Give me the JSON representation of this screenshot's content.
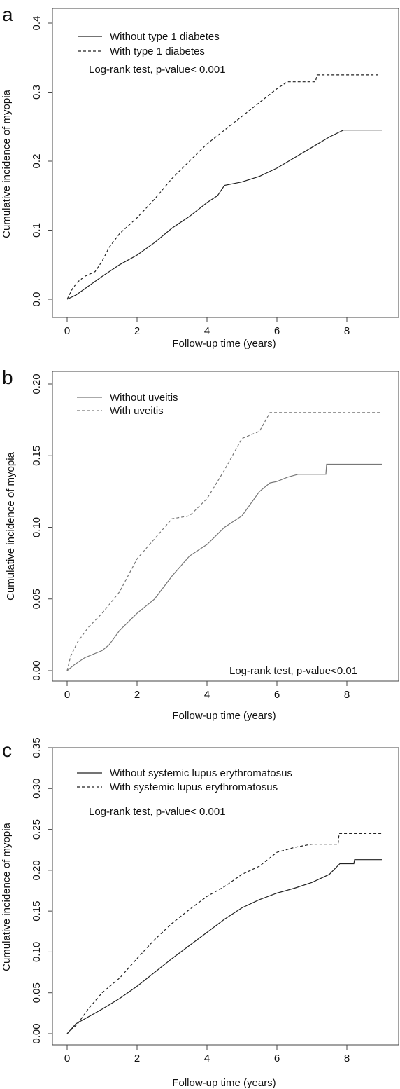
{
  "chart_data": [
    {
      "type": "line",
      "panel_label": "a",
      "title": "",
      "xlabel": "Follow-up time (years)",
      "ylabel": "Cumulative incidence of myopia",
      "xlim": [
        0,
        9
      ],
      "ylim": [
        0,
        0.4
      ],
      "xticks": [
        0,
        2,
        4,
        6,
        8
      ],
      "yticks": [
        0.0,
        0.1,
        0.2,
        0.3,
        0.4
      ],
      "ytick_labels": [
        "0.0",
        "0.1",
        "0.2",
        "0.3",
        "0.4"
      ],
      "grid": false,
      "legend_position": "top-left",
      "annotation": "Log-rank test, p-value< 0.001",
      "series": [
        {
          "name": "Without type 1 diabetes",
          "style": "solid",
          "color": "#222222",
          "points": [
            [
              0,
              0
            ],
            [
              0.25,
              0.006
            ],
            [
              0.5,
              0.015
            ],
            [
              1,
              0.033
            ],
            [
              1.5,
              0.05
            ],
            [
              2,
              0.064
            ],
            [
              2.5,
              0.082
            ],
            [
              3,
              0.103
            ],
            [
              3.5,
              0.12
            ],
            [
              4,
              0.14
            ],
            [
              4.3,
              0.15
            ],
            [
              4.5,
              0.165
            ],
            [
              5,
              0.17
            ],
            [
              5.5,
              0.178
            ],
            [
              6,
              0.19
            ],
            [
              6.5,
              0.205
            ],
            [
              7,
              0.22
            ],
            [
              7.5,
              0.235
            ],
            [
              7.9,
              0.245
            ],
            [
              9,
              0.245
            ]
          ]
        },
        {
          "name": "With type 1 diabetes",
          "style": "dashed",
          "color": "#222222",
          "points": [
            [
              0,
              0
            ],
            [
              0.15,
              0.015
            ],
            [
              0.3,
              0.025
            ],
            [
              0.5,
              0.033
            ],
            [
              0.8,
              0.04
            ],
            [
              1,
              0.055
            ],
            [
              1.2,
              0.075
            ],
            [
              1.5,
              0.095
            ],
            [
              2,
              0.118
            ],
            [
              2.5,
              0.145
            ],
            [
              3,
              0.175
            ],
            [
              3.5,
              0.2
            ],
            [
              4,
              0.225
            ],
            [
              4.5,
              0.245
            ],
            [
              5,
              0.265
            ],
            [
              5.5,
              0.285
            ],
            [
              6,
              0.305
            ],
            [
              6.3,
              0.315
            ],
            [
              7.1,
              0.315
            ],
            [
              7.15,
              0.325
            ],
            [
              8.9,
              0.325
            ]
          ]
        }
      ]
    },
    {
      "type": "line",
      "panel_label": "b",
      "title": "",
      "xlabel": "Follow-up time (years)",
      "ylabel": "Cumulative incidence of myopia",
      "xlim": [
        0,
        9
      ],
      "ylim": [
        0,
        0.2
      ],
      "xticks": [
        0,
        2,
        4,
        6,
        8
      ],
      "yticks": [
        0.0,
        0.05,
        0.1,
        0.15,
        0.2
      ],
      "ytick_labels": [
        "0.00",
        "0.05",
        "0.10",
        "0.15",
        "0.20"
      ],
      "grid": false,
      "legend_position": "top-left",
      "annotation": "Log-rank test, p-value<0.01",
      "series": [
        {
          "name": "Without uveitis",
          "style": "solid",
          "color": "#777777",
          "points": [
            [
              0,
              0
            ],
            [
              0.2,
              0.004
            ],
            [
              0.5,
              0.009
            ],
            [
              1,
              0.014
            ],
            [
              1.2,
              0.018
            ],
            [
              1.5,
              0.028
            ],
            [
              2,
              0.04
            ],
            [
              2.5,
              0.05
            ],
            [
              3,
              0.066
            ],
            [
              3.5,
              0.08
            ],
            [
              4,
              0.088
            ],
            [
              4.5,
              0.1
            ],
            [
              5,
              0.108
            ],
            [
              5.5,
              0.125
            ],
            [
              5.8,
              0.131
            ],
            [
              6,
              0.132
            ],
            [
              6.3,
              0.135
            ],
            [
              6.6,
              0.137
            ],
            [
              7.4,
              0.137
            ],
            [
              7.42,
              0.144
            ],
            [
              9,
              0.144
            ]
          ]
        },
        {
          "name": "With uveitis",
          "style": "dashed",
          "color": "#777777",
          "points": [
            [
              0,
              0
            ],
            [
              0.1,
              0.01
            ],
            [
              0.3,
              0.02
            ],
            [
              0.6,
              0.03
            ],
            [
              1,
              0.04
            ],
            [
              1.5,
              0.055
            ],
            [
              2,
              0.078
            ],
            [
              2.5,
              0.092
            ],
            [
              3,
              0.106
            ],
            [
              3.5,
              0.108
            ],
            [
              4,
              0.12
            ],
            [
              4.5,
              0.14
            ],
            [
              5,
              0.162
            ],
            [
              5.5,
              0.167
            ],
            [
              5.8,
              0.18
            ],
            [
              9,
              0.18
            ]
          ]
        }
      ]
    },
    {
      "type": "line",
      "panel_label": "c",
      "title": "",
      "xlabel": "Follow-up time (years)",
      "ylabel": "Cumulative incidence of myopia",
      "xlim": [
        0,
        9
      ],
      "ylim": [
        0,
        0.35
      ],
      "xticks": [
        0,
        2,
        4,
        6,
        8
      ],
      "yticks": [
        0.0,
        0.05,
        0.1,
        0.15,
        0.2,
        0.25,
        0.3,
        0.35
      ],
      "ytick_labels": [
        "0.00",
        "0.05",
        "0.10",
        "0.15",
        "0.20",
        "0.25",
        "0.30",
        "0.35"
      ],
      "grid": false,
      "legend_position": "top-left",
      "annotation": "Log-rank test, p-value< 0.001",
      "series": [
        {
          "name": "Without systemic lupus erythromatosus",
          "style": "solid",
          "color": "#222222",
          "points": [
            [
              0,
              0
            ],
            [
              0.25,
              0.012
            ],
            [
              0.5,
              0.018
            ],
            [
              1,
              0.03
            ],
            [
              1.5,
              0.043
            ],
            [
              2,
              0.058
            ],
            [
              2.5,
              0.075
            ],
            [
              3,
              0.092
            ],
            [
              3.5,
              0.108
            ],
            [
              4,
              0.124
            ],
            [
              4.5,
              0.14
            ],
            [
              5,
              0.154
            ],
            [
              5.5,
              0.164
            ],
            [
              6,
              0.172
            ],
            [
              6.5,
              0.178
            ],
            [
              7,
              0.185
            ],
            [
              7.5,
              0.195
            ],
            [
              7.8,
              0.208
            ],
            [
              8.2,
              0.208
            ],
            [
              8.22,
              0.213
            ],
            [
              9,
              0.213
            ]
          ]
        },
        {
          "name": "With systemic lupus erythromatosus",
          "style": "dashed",
          "color": "#222222",
          "points": [
            [
              0,
              0
            ],
            [
              0.3,
              0.012
            ],
            [
              0.6,
              0.03
            ],
            [
              1,
              0.05
            ],
            [
              1.5,
              0.068
            ],
            [
              2,
              0.092
            ],
            [
              2.5,
              0.115
            ],
            [
              3,
              0.135
            ],
            [
              3.5,
              0.152
            ],
            [
              4,
              0.168
            ],
            [
              4.5,
              0.18
            ],
            [
              5,
              0.195
            ],
            [
              5.5,
              0.205
            ],
            [
              6,
              0.222
            ],
            [
              6.5,
              0.228
            ],
            [
              7,
              0.232
            ],
            [
              7.75,
              0.232
            ],
            [
              7.78,
              0.245
            ],
            [
              9,
              0.245
            ]
          ]
        }
      ]
    }
  ]
}
